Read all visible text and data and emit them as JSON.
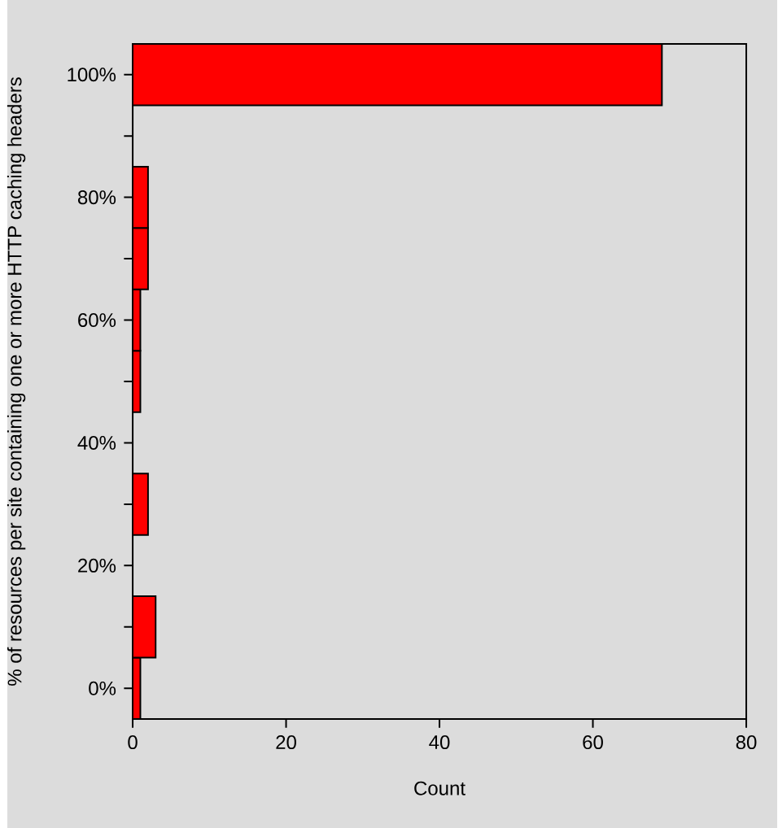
{
  "chart_data": {
    "type": "histogram",
    "orientation": "horizontal",
    "xlabel": "Count",
    "ylabel": "% of resources per site containing one or more HTTP caching headers",
    "bins": [
      -5,
      5,
      15,
      25,
      35,
      45,
      55,
      65,
      75,
      85,
      95,
      105
    ],
    "values": [
      1,
      3,
      0,
      2,
      0,
      1,
      1,
      2,
      2,
      0,
      69
    ],
    "color": "#ff0000",
    "xlim": [
      0,
      80
    ],
    "xticks": [
      0,
      20,
      40,
      60,
      80
    ],
    "ylim": [
      -5,
      105
    ],
    "yticks": [
      {
        "value": 0,
        "label": "0%"
      },
      {
        "value": 10,
        "label": null
      },
      {
        "value": 20,
        "label": "20%"
      },
      {
        "value": 30,
        "label": null
      },
      {
        "value": 40,
        "label": "40%"
      },
      {
        "value": 50,
        "label": null
      },
      {
        "value": 60,
        "label": "60%"
      },
      {
        "value": 70,
        "label": null
      },
      {
        "value": 80,
        "label": "80%"
      },
      {
        "value": 90,
        "label": null
      },
      {
        "value": 100,
        "label": "100%"
      }
    ],
    "grid": false
  }
}
